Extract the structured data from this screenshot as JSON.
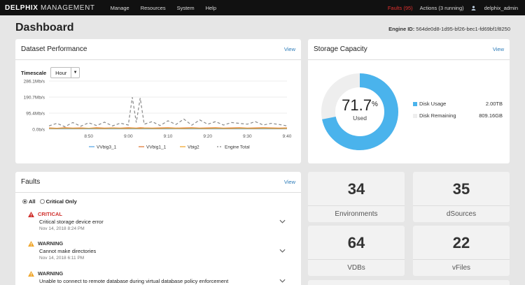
{
  "topbar": {
    "brand_bold": "DELPHIX",
    "brand_rest": "MANAGEMENT",
    "nav": [
      "Manage",
      "Resources",
      "System",
      "Help"
    ],
    "faults": "Faults (95)",
    "actions": "Actions (3 running)",
    "user": "delphix_admin"
  },
  "header": {
    "title": "Dashboard",
    "engine_label": "Engine ID:",
    "engine_id": "564de0d8-1d95-bf26-bec1-fd69bf1f8250"
  },
  "perf": {
    "title": "Dataset Performance",
    "view": "View",
    "timescale_label": "Timescale",
    "timescale_value": "Hour",
    "chart_data": {
      "type": "line",
      "x": [
        "8:40",
        "8:42",
        "8:44",
        "8:46",
        "8:48",
        "8:50",
        "8:52",
        "8:54",
        "8:56",
        "8:58",
        "9:00",
        "9:01",
        "9:02",
        "9:03",
        "9:04",
        "9:06",
        "9:08",
        "9:10",
        "9:12",
        "9:14",
        "9:16",
        "9:18",
        "9:20",
        "9:22",
        "9:24",
        "9:26",
        "9:28",
        "9:30",
        "9:32",
        "9:34",
        "9:36",
        "9:38",
        "9:40"
      ],
      "x_ticks": [
        "8:50",
        "9:00",
        "9:10",
        "9:20",
        "9:30",
        "9:40"
      ],
      "y_ticks": [
        "286.1Mb/s",
        "190.7Mb/s",
        "95.4Mb/s",
        "0.0b/s"
      ],
      "ylim": [
        0,
        286.1
      ],
      "series": [
        {
          "name": "VVbig3_1",
          "color": "#5aa9e6",
          "dash": false,
          "values": [
            3,
            2,
            3,
            2,
            3,
            2,
            3,
            2,
            3,
            2,
            3,
            2,
            3,
            2,
            3,
            2,
            3,
            2,
            3,
            2,
            3,
            2,
            3,
            2,
            3,
            2,
            3,
            2,
            3,
            2,
            3,
            2,
            3
          ]
        },
        {
          "name": "VVbig1_1",
          "color": "#e07b39",
          "dash": false,
          "values": [
            8,
            6,
            9,
            7,
            8,
            6,
            9,
            7,
            8,
            7,
            9,
            8,
            7,
            9,
            8,
            7,
            8,
            9,
            7,
            8,
            9,
            7,
            8,
            9,
            7,
            8,
            9,
            7,
            8,
            9,
            8,
            7,
            8
          ]
        },
        {
          "name": "Vbig2",
          "color": "#f0a830",
          "dash": false,
          "values": [
            5,
            4,
            6,
            5,
            4,
            6,
            5,
            4,
            6,
            5,
            4,
            6,
            5,
            4,
            6,
            5,
            4,
            6,
            5,
            4,
            6,
            5,
            4,
            6,
            5,
            4,
            6,
            5,
            4,
            6,
            5,
            4,
            5
          ]
        },
        {
          "name": "Engine Total",
          "color": "#888888",
          "dash": true,
          "values": [
            20,
            35,
            15,
            40,
            18,
            38,
            22,
            42,
            20,
            36,
            25,
            190,
            40,
            185,
            30,
            45,
            22,
            50,
            28,
            60,
            24,
            55,
            30,
            45,
            25,
            40,
            35,
            30,
            45,
            25,
            35,
            28,
            20
          ]
        }
      ]
    }
  },
  "storage": {
    "title": "Storage Capacity",
    "view": "View",
    "percent": "71.7",
    "percent_unit": "%",
    "used_label": "Used",
    "usage_fraction": 0.717,
    "legend": [
      {
        "label": "Disk Usage",
        "value": "2.00TB",
        "color": "#4ab3ec"
      },
      {
        "label": "Disk Remaining",
        "value": "809.16GB",
        "color": "#eeeeee"
      }
    ]
  },
  "faults": {
    "title": "Faults",
    "view": "View",
    "filter_all": "All",
    "filter_critical": "Critical Only",
    "items": [
      {
        "severity": "CRITICAL",
        "color": "#d0312d",
        "desc": "Critical storage device error",
        "date": "Nov 14, 2018 8:24 PM"
      },
      {
        "severity": "WARNING",
        "color": "#333333",
        "desc": "Cannot make directories",
        "date": "Nov 14, 2018 6:11 PM"
      },
      {
        "severity": "WARNING",
        "color": "#333333",
        "desc": "Unable to connect to remote database during virtual database policy enforcement",
        "date": ""
      }
    ]
  },
  "stats": [
    {
      "value": "34",
      "label": "Environments"
    },
    {
      "value": "35",
      "label": "dSources"
    },
    {
      "value": "64",
      "label": "VDBs"
    },
    {
      "value": "22",
      "label": "vFiles"
    }
  ]
}
